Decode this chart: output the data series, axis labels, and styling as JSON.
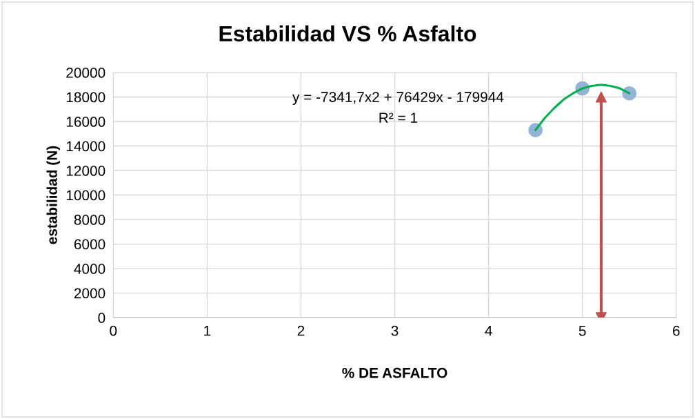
{
  "chart_data": {
    "type": "scatter",
    "title": "Estabilidad VS % Asfalto",
    "xlabel": "% DE ASFALTO",
    "ylabel": "estabilidad (N)",
    "annotations": [
      "y = -7341,7x2 + 76429x - 179944",
      "R² = 1"
    ],
    "series": [
      {
        "color": "#95b3d7",
        "marker": "circle",
        "x": [
          4.5,
          5,
          5.5
        ],
        "values": [
          15300,
          18700,
          18300
        ]
      },
      {
        "type": "line",
        "color": "#00b050",
        "marker": "none",
        "x": [
          4.5,
          4.6,
          4.7,
          4.8,
          4.9,
          5.0,
          5.1,
          5.2,
          5.3,
          5.4,
          5.5
        ],
        "values": [
          15300,
          16300,
          17100,
          17800,
          18300,
          18700,
          18900,
          19000,
          18900,
          18700,
          18300
        ]
      }
    ],
    "ref_lines": [
      {
        "axis": "x",
        "value": 5.2,
        "color": "#c0504d"
      }
    ],
    "xlim": [
      0,
      6
    ],
    "xticks": [
      0,
      1,
      2,
      3,
      4,
      5,
      6
    ],
    "ylim": [
      0,
      20000
    ],
    "yticks": [
      0,
      2000,
      4000,
      6000,
      8000,
      10000,
      12000,
      14000,
      16000,
      18000,
      20000
    ],
    "grid": true,
    "legend": false
  }
}
